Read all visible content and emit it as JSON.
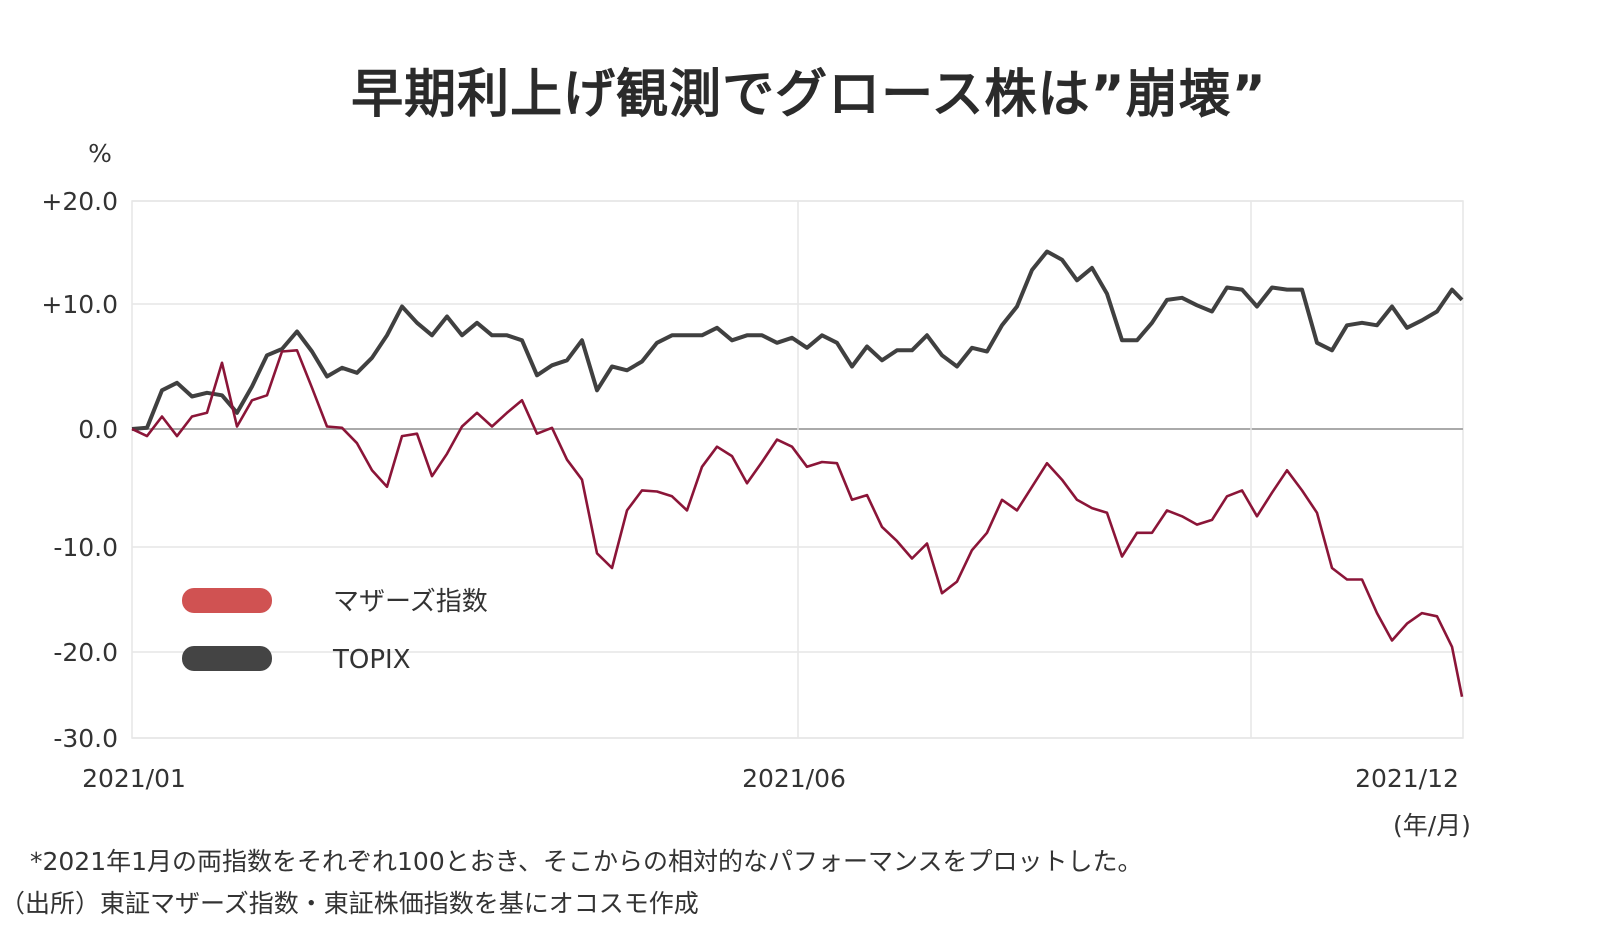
{
  "title": "早期利上げ観測でグロース株は”崩壊”",
  "notes": {
    "unit_note": "(年/月)",
    "footnote": "*2021年1月の両指数をそれぞれ100とおき、そこからの相対的なパフォーマンスをプロットした。",
    "source": "（出所）東証マザーズ指数・東証株価指数を基にオコスモ作成"
  },
  "chart_data": {
    "type": "line",
    "title": "早期利上げ観測でグロース株は”崩壊”",
    "ylabel": "%",
    "xlabel": "(年/月)",
    "ylim": [
      -30,
      20
    ],
    "y_ticks": [
      20,
      10,
      0,
      -10,
      -20,
      -30
    ],
    "y_tick_labels": [
      "+20.0",
      "+10.0",
      "0.0",
      "-10.0",
      "-20.0",
      "-30.0"
    ],
    "x_tick_labels": [
      "2021/01",
      "2021/06",
      "2021/12"
    ],
    "grid": true,
    "legend": "bottom-left",
    "series": [
      {
        "name": "マザーズ指数",
        "color": "#8b1538",
        "legend_color": "#d05252",
        "values": [
          0.0,
          -0.6,
          1.0,
          -0.6,
          1.0,
          1.3,
          5.3,
          0.2,
          2.3,
          2.7,
          6.2,
          6.3,
          3.3,
          0.2,
          0.1,
          -1.2,
          -3.5,
          -4.9,
          -0.6,
          -0.4,
          -4.0,
          -2.1,
          0.2,
          1.3,
          0.2,
          1.3,
          2.3,
          -0.4,
          0.1,
          -2.6,
          -4.3,
          -10.6,
          -12.0,
          -6.9,
          -5.2,
          -5.3,
          -5.7,
          -6.9,
          -3.2,
          -1.5,
          -2.3,
          -4.6,
          -2.8,
          -0.9,
          -1.5,
          -3.2,
          -2.8,
          -2.9,
          -6.0,
          -5.6,
          -8.3,
          -9.5,
          -11.1,
          -9.7,
          -14.4,
          -13.3,
          -10.3,
          -8.8,
          -6.0,
          -6.9,
          -4.9,
          -2.9,
          -4.3,
          -6.0,
          -6.7,
          -7.1,
          -10.9,
          -8.8,
          -8.8,
          -6.9,
          -7.4,
          -8.1,
          -7.7,
          -5.7,
          -5.2,
          -7.4,
          -5.4,
          -3.5,
          -5.2,
          -7.1,
          -12.0,
          -13.1,
          -13.1,
          -16.3,
          -18.9,
          -17.3,
          -16.3,
          -16.6,
          -19.5,
          -25.2
        ]
      },
      {
        "name": "TOPIX",
        "color": "#404040",
        "legend_color": "#444444",
        "values": [
          0.0,
          0.1,
          3.1,
          3.7,
          2.6,
          2.9,
          2.7,
          1.3,
          3.4,
          5.9,
          6.4,
          7.8,
          6.2,
          4.2,
          4.9,
          4.5,
          5.7,
          7.5,
          9.8,
          8.5,
          7.5,
          9.0,
          7.5,
          8.5,
          7.5,
          7.5,
          7.1,
          4.3,
          5.1,
          5.5,
          7.1,
          3.1,
          5.0,
          4.7,
          5.4,
          6.9,
          7.5,
          7.5,
          7.5,
          8.1,
          7.1,
          7.5,
          7.5,
          6.9,
          7.3,
          6.5,
          7.5,
          6.9,
          5.0,
          6.6,
          5.5,
          6.3,
          6.3,
          7.5,
          5.9,
          5.0,
          6.5,
          6.2,
          8.3,
          9.8,
          13.3,
          15.1,
          14.3,
          12.3,
          13.5,
          11.0,
          7.1,
          7.1,
          8.5,
          10.4,
          10.6,
          9.9,
          9.4,
          11.6,
          11.4,
          9.8,
          11.6,
          11.4,
          11.4,
          6.9,
          6.3,
          8.3,
          8.5,
          8.3,
          9.8,
          8.1,
          8.7,
          9.4,
          11.4,
          10.4
        ]
      }
    ]
  }
}
